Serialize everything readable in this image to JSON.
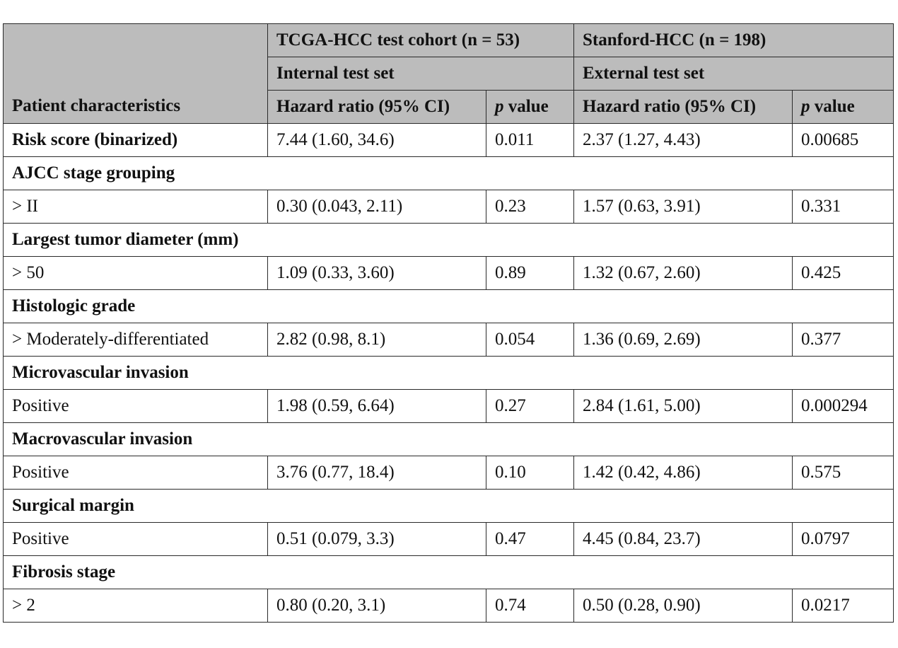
{
  "header": {
    "col_patient": "Patient characteristics",
    "cohort1": "TCGA-HCC test cohort (n = 53)",
    "cohort2": "Stanford-HCC (n = 198)",
    "set1": "Internal test set",
    "set2": "External test set",
    "hr_label": "Hazard ratio (95% CI)",
    "p_italic": "p",
    "p_rest": " value"
  },
  "rows": [
    {
      "label": "Risk score (binarized)",
      "hr1": "7.44 (1.60, 34.6)",
      "p1": "0.011",
      "hr2": "2.37 (1.27, 4.43)",
      "p2": "0.00685"
    },
    {
      "section": "AJCC stage grouping"
    },
    {
      "label": "> II",
      "hr1": "0.30 (0.043, 2.11)",
      "p1": "0.23",
      "hr2": "1.57 (0.63, 3.91)",
      "p2": "0.331"
    },
    {
      "section": "Largest tumor diameter (mm)"
    },
    {
      "label": "> 50",
      "hr1": "1.09 (0.33, 3.60)",
      "p1": "0.89",
      "hr2": "1.32 (0.67, 2.60)",
      "p2": "0.425"
    },
    {
      "section": "Histologic grade"
    },
    {
      "label": "> Moderately-differentiated",
      "hr1": "2.82 (0.98, 8.1)",
      "p1": "0.054",
      "hr2": "1.36 (0.69, 2.69)",
      "p2": "0.377"
    },
    {
      "section": "Microvascular invasion"
    },
    {
      "label": "Positive",
      "hr1": "1.98 (0.59, 6.64)",
      "p1": "0.27",
      "hr2": "2.84 (1.61, 5.00)",
      "p2": "0.000294"
    },
    {
      "section": "Macrovascular invasion"
    },
    {
      "label": "Positive",
      "hr1": "3.76 (0.77, 18.4)",
      "p1": "0.10",
      "hr2": "1.42 (0.42, 4.86)",
      "p2": "0.575"
    },
    {
      "section": "Surgical margin"
    },
    {
      "label": "Positive",
      "hr1": "0.51 (0.079, 3.3)",
      "p1": "0.47",
      "hr2": "4.45 (0.84, 23.7)",
      "p2": "0.0797"
    },
    {
      "section": "Fibrosis stage"
    },
    {
      "label": "> 2",
      "hr1": "0.80 (0.20, 3.1)",
      "p1": "0.74",
      "hr2": "0.50 (0.28, 0.90)",
      "p2": "0.0217"
    }
  ],
  "colors": {
    "header_bg": "#bcbcbc",
    "border": "#2a2a2a"
  }
}
